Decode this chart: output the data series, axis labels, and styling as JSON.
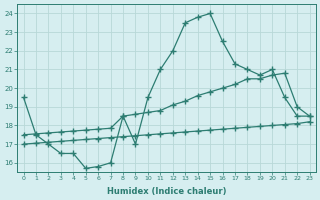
{
  "x": [
    0,
    1,
    2,
    3,
    4,
    5,
    6,
    7,
    8,
    9,
    10,
    11,
    12,
    13,
    14,
    15,
    16,
    17,
    18,
    19,
    20,
    21,
    22,
    23
  ],
  "line1": [
    19.5,
    17.5,
    17.0,
    16.5,
    16.5,
    15.7,
    15.8,
    16.0,
    18.5,
    17.0,
    19.5,
    21.0,
    22.0,
    23.5,
    23.8,
    24.0,
    22.5,
    21.3,
    21.0,
    20.7,
    21.0,
    19.5,
    18.5,
    18.5
  ],
  "line2": [
    17.5,
    17.55,
    17.6,
    17.65,
    17.7,
    17.75,
    17.8,
    17.85,
    18.5,
    18.6,
    18.7,
    18.8,
    19.1,
    19.3,
    19.6,
    19.8,
    20.0,
    20.2,
    20.5,
    20.5,
    20.7,
    20.8,
    19.0,
    18.5
  ],
  "line3": [
    17.0,
    17.05,
    17.1,
    17.15,
    17.2,
    17.25,
    17.3,
    17.35,
    17.4,
    17.45,
    17.5,
    17.55,
    17.6,
    17.65,
    17.7,
    17.75,
    17.8,
    17.85,
    17.9,
    17.95,
    18.0,
    18.05,
    18.1,
    18.2
  ],
  "color": "#2d7d72",
  "bg_color": "#d6eef0",
  "grid_color": "#b8d8d8",
  "xlabel": "Humidex (Indice chaleur)",
  "ylim": [
    15.5,
    24.5
  ],
  "xlim": [
    -0.5,
    23.5
  ],
  "yticks": [
    16,
    17,
    18,
    19,
    20,
    21,
    22,
    23,
    24
  ],
  "xticks": [
    0,
    1,
    2,
    3,
    4,
    5,
    6,
    7,
    8,
    9,
    10,
    11,
    12,
    13,
    14,
    15,
    16,
    17,
    18,
    19,
    20,
    21,
    22,
    23
  ]
}
